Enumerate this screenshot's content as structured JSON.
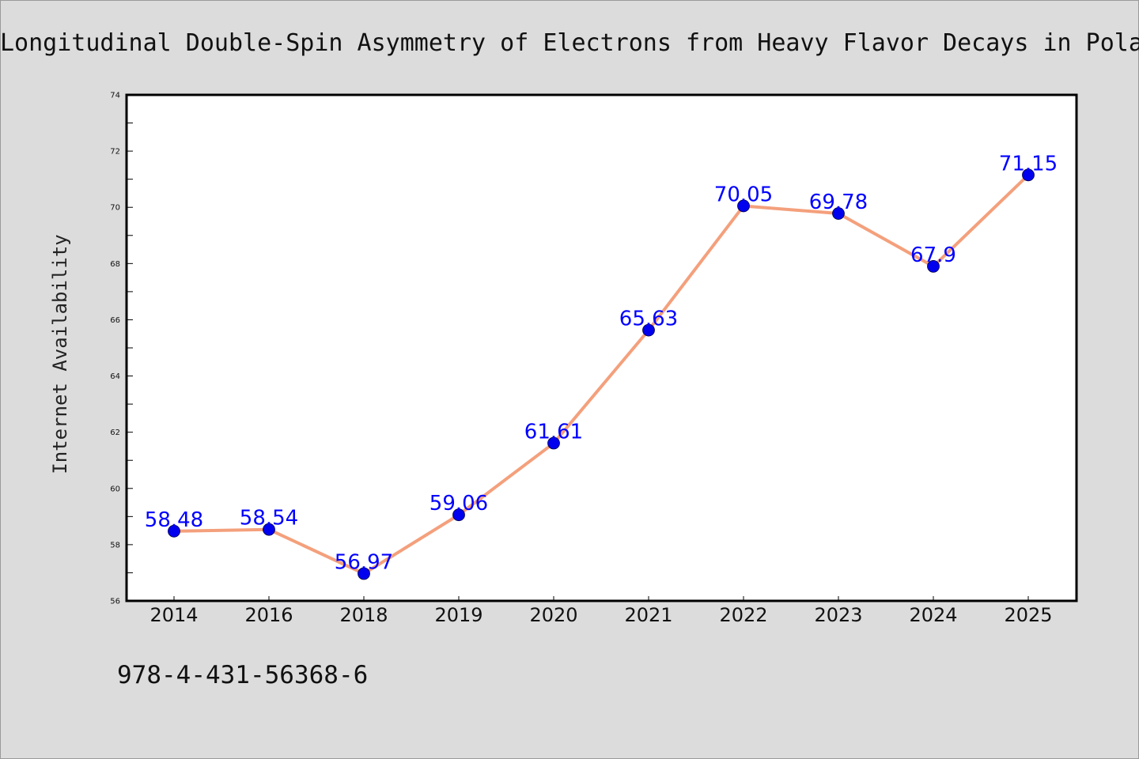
{
  "chart_data": {
    "type": "line",
    "title": "Longitudinal Double-Spin Asymmetry of Electrons from Heavy Flavor Decays in Pola",
    "xlabel": "",
    "ylabel": "Internet Availability",
    "categories": [
      "2014",
      "2016",
      "2018",
      "2019",
      "2020",
      "2021",
      "2022",
      "2023",
      "2024",
      "2025"
    ],
    "series": [
      {
        "values": [
          58.48,
          58.54,
          56.97,
          59.06,
          61.61,
          65.63,
          70.05,
          69.78,
          67.9,
          71.15
        ],
        "labels": [
          "58.48",
          "58.54",
          "56.97",
          "59.06",
          "61.61",
          "65.63",
          "70.05",
          "69.78",
          "67.9",
          "71.15"
        ]
      }
    ],
    "ylim": [
      56,
      74
    ],
    "yticks": [
      "56",
      "58",
      "60",
      "62",
      "64",
      "66",
      "68",
      "70",
      "72",
      "74"
    ],
    "grid": false,
    "legend": "none",
    "colors": {
      "line": "#f4a07c",
      "marker": "#0000ee",
      "data_label": "#0000ff",
      "plot_background": "#ffffff",
      "figure_background": "#dcdcdc"
    }
  },
  "annotation": "978-4-431-56368-6"
}
